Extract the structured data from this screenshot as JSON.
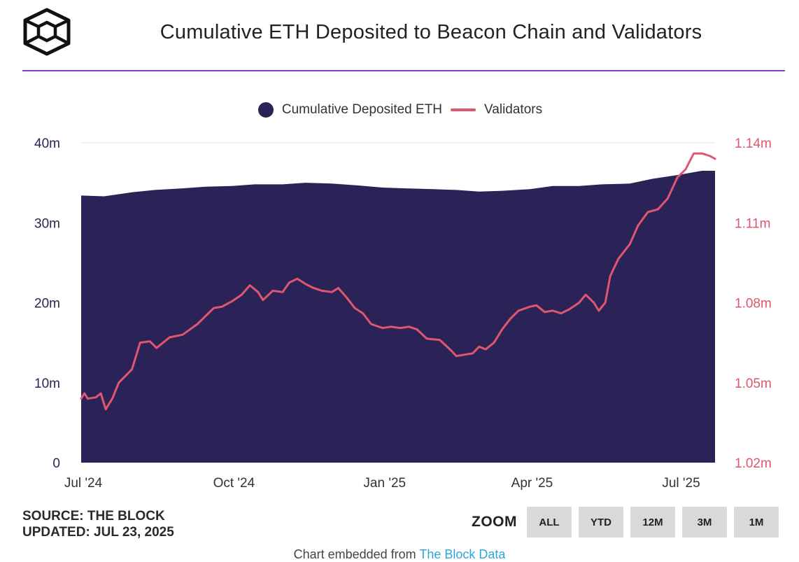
{
  "header": {
    "logo_icon": "cube-outline-icon",
    "title": "Cumulative ETH Deposited to Beacon Chain and Validators"
  },
  "colors": {
    "accent_rule": "#8b3dcc",
    "area": "#2b2357",
    "line": "#e0566e",
    "left_axis": "#2b2357",
    "right_axis": "#e0566e"
  },
  "chart_data": {
    "type": "area",
    "title": "Cumulative ETH Deposited to Beacon Chain and Validators",
    "legend_position": "top-center",
    "grid": true,
    "x_ticks": [
      "Jul '24",
      "Oct '24",
      "Jan '25",
      "Apr '25",
      "Jul '25"
    ],
    "x_range": [
      "2024-07-01",
      "2025-07-23"
    ],
    "y_left": {
      "ticks": [
        "0",
        "10m",
        "20m",
        "30m",
        "40m"
      ],
      "range": [
        0,
        40000000
      ]
    },
    "y_right": {
      "ticks": [
        "1.02m",
        "1.05m",
        "1.08m",
        "1.11m",
        "1.14m"
      ],
      "range": [
        1020000,
        1140000
      ]
    },
    "series": [
      {
        "name": "Cumulative Deposited ETH",
        "type": "area",
        "axis": "left",
        "points": [
          [
            "2024-07-01",
            33400000
          ],
          [
            "2024-07-15",
            33300000
          ],
          [
            "2024-08-01",
            33800000
          ],
          [
            "2024-08-15",
            34100000
          ],
          [
            "2024-09-01",
            34300000
          ],
          [
            "2024-09-15",
            34500000
          ],
          [
            "2024-10-01",
            34600000
          ],
          [
            "2024-10-15",
            34800000
          ],
          [
            "2024-11-01",
            34800000
          ],
          [
            "2024-11-15",
            35000000
          ],
          [
            "2024-12-01",
            34900000
          ],
          [
            "2024-12-15",
            34700000
          ],
          [
            "2025-01-01",
            34400000
          ],
          [
            "2025-01-15",
            34300000
          ],
          [
            "2025-02-01",
            34200000
          ],
          [
            "2025-02-15",
            34100000
          ],
          [
            "2025-03-01",
            33900000
          ],
          [
            "2025-03-15",
            34000000
          ],
          [
            "2025-04-01",
            34200000
          ],
          [
            "2025-04-15",
            34600000
          ],
          [
            "2025-05-01",
            34600000
          ],
          [
            "2025-05-15",
            34800000
          ],
          [
            "2025-06-01",
            34900000
          ],
          [
            "2025-06-15",
            35500000
          ],
          [
            "2025-07-01",
            36000000
          ],
          [
            "2025-07-15",
            36500000
          ],
          [
            "2025-07-23",
            36500000
          ]
        ]
      },
      {
        "name": "Validators",
        "type": "line",
        "axis": "right",
        "points": [
          [
            "2024-07-01",
            1044000
          ],
          [
            "2024-07-03",
            1046000
          ],
          [
            "2024-07-05",
            1044000
          ],
          [
            "2024-07-10",
            1044500
          ],
          [
            "2024-07-13",
            1046000
          ],
          [
            "2024-07-16",
            1040000
          ],
          [
            "2024-07-20",
            1044000
          ],
          [
            "2024-07-24",
            1050000
          ],
          [
            "2024-08-01",
            1055000
          ],
          [
            "2024-08-06",
            1065000
          ],
          [
            "2024-08-12",
            1065500
          ],
          [
            "2024-08-16",
            1063000
          ],
          [
            "2024-08-20",
            1065000
          ],
          [
            "2024-08-24",
            1067000
          ],
          [
            "2024-09-01",
            1068000
          ],
          [
            "2024-09-10",
            1072000
          ],
          [
            "2024-09-15",
            1075000
          ],
          [
            "2024-09-20",
            1078000
          ],
          [
            "2024-09-25",
            1078500
          ],
          [
            "2024-10-01",
            1080500
          ],
          [
            "2024-10-07",
            1083000
          ],
          [
            "2024-10-12",
            1086500
          ],
          [
            "2024-10-17",
            1084000
          ],
          [
            "2024-10-20",
            1081000
          ],
          [
            "2024-10-26",
            1084500
          ],
          [
            "2024-11-01",
            1084000
          ],
          [
            "2024-11-05",
            1087500
          ],
          [
            "2024-11-10",
            1089000
          ],
          [
            "2024-11-15",
            1087000
          ],
          [
            "2024-11-20",
            1085500
          ],
          [
            "2024-11-25",
            1084500
          ],
          [
            "2024-12-01",
            1084000
          ],
          [
            "2024-12-05",
            1085500
          ],
          [
            "2024-12-10",
            1082000
          ],
          [
            "2024-12-15",
            1078000
          ],
          [
            "2024-12-20",
            1076000
          ],
          [
            "2024-12-25",
            1072000
          ],
          [
            "2025-01-01",
            1070500
          ],
          [
            "2025-01-06",
            1071000
          ],
          [
            "2025-01-12",
            1070500
          ],
          [
            "2025-01-17",
            1071000
          ],
          [
            "2025-01-22",
            1070000
          ],
          [
            "2025-01-28",
            1066500
          ],
          [
            "2025-02-05",
            1066000
          ],
          [
            "2025-02-12",
            1062000
          ],
          [
            "2025-02-15",
            1060000
          ],
          [
            "2025-02-20",
            1060500
          ],
          [
            "2025-02-25",
            1061000
          ],
          [
            "2025-03-01",
            1063500
          ],
          [
            "2025-03-05",
            1062500
          ],
          [
            "2025-03-10",
            1065000
          ],
          [
            "2025-03-15",
            1070000
          ],
          [
            "2025-03-20",
            1074000
          ],
          [
            "2025-03-25",
            1077000
          ],
          [
            "2025-04-01",
            1078500
          ],
          [
            "2025-04-05",
            1079000
          ],
          [
            "2025-04-10",
            1076500
          ],
          [
            "2025-04-15",
            1077000
          ],
          [
            "2025-04-20",
            1076000
          ],
          [
            "2025-04-25",
            1077500
          ],
          [
            "2025-05-01",
            1080000
          ],
          [
            "2025-05-05",
            1083000
          ],
          [
            "2025-05-10",
            1080000
          ],
          [
            "2025-05-13",
            1077000
          ],
          [
            "2025-05-17",
            1080000
          ],
          [
            "2025-05-20",
            1090000
          ],
          [
            "2025-05-25",
            1096500
          ],
          [
            "2025-06-01",
            1102000
          ],
          [
            "2025-06-06",
            1109000
          ],
          [
            "2025-06-12",
            1114000
          ],
          [
            "2025-06-18",
            1115000
          ],
          [
            "2025-06-24",
            1119000
          ],
          [
            "2025-06-30",
            1127000
          ],
          [
            "2025-07-05",
            1130000
          ],
          [
            "2025-07-10",
            1136000
          ],
          [
            "2025-07-15",
            1136000
          ],
          [
            "2025-07-20",
            1135000
          ],
          [
            "2025-07-23",
            1134000
          ]
        ]
      }
    ]
  },
  "footer": {
    "source": "SOURCE: THE BLOCK",
    "updated": "UPDATED: JUL 23, 2025",
    "zoom_label": "ZOOM",
    "zoom_buttons": [
      "ALL",
      "YTD",
      "12M",
      "3M",
      "1M"
    ],
    "credit_prefix": "Chart embedded from",
    "credit_link": "The Block Data"
  }
}
